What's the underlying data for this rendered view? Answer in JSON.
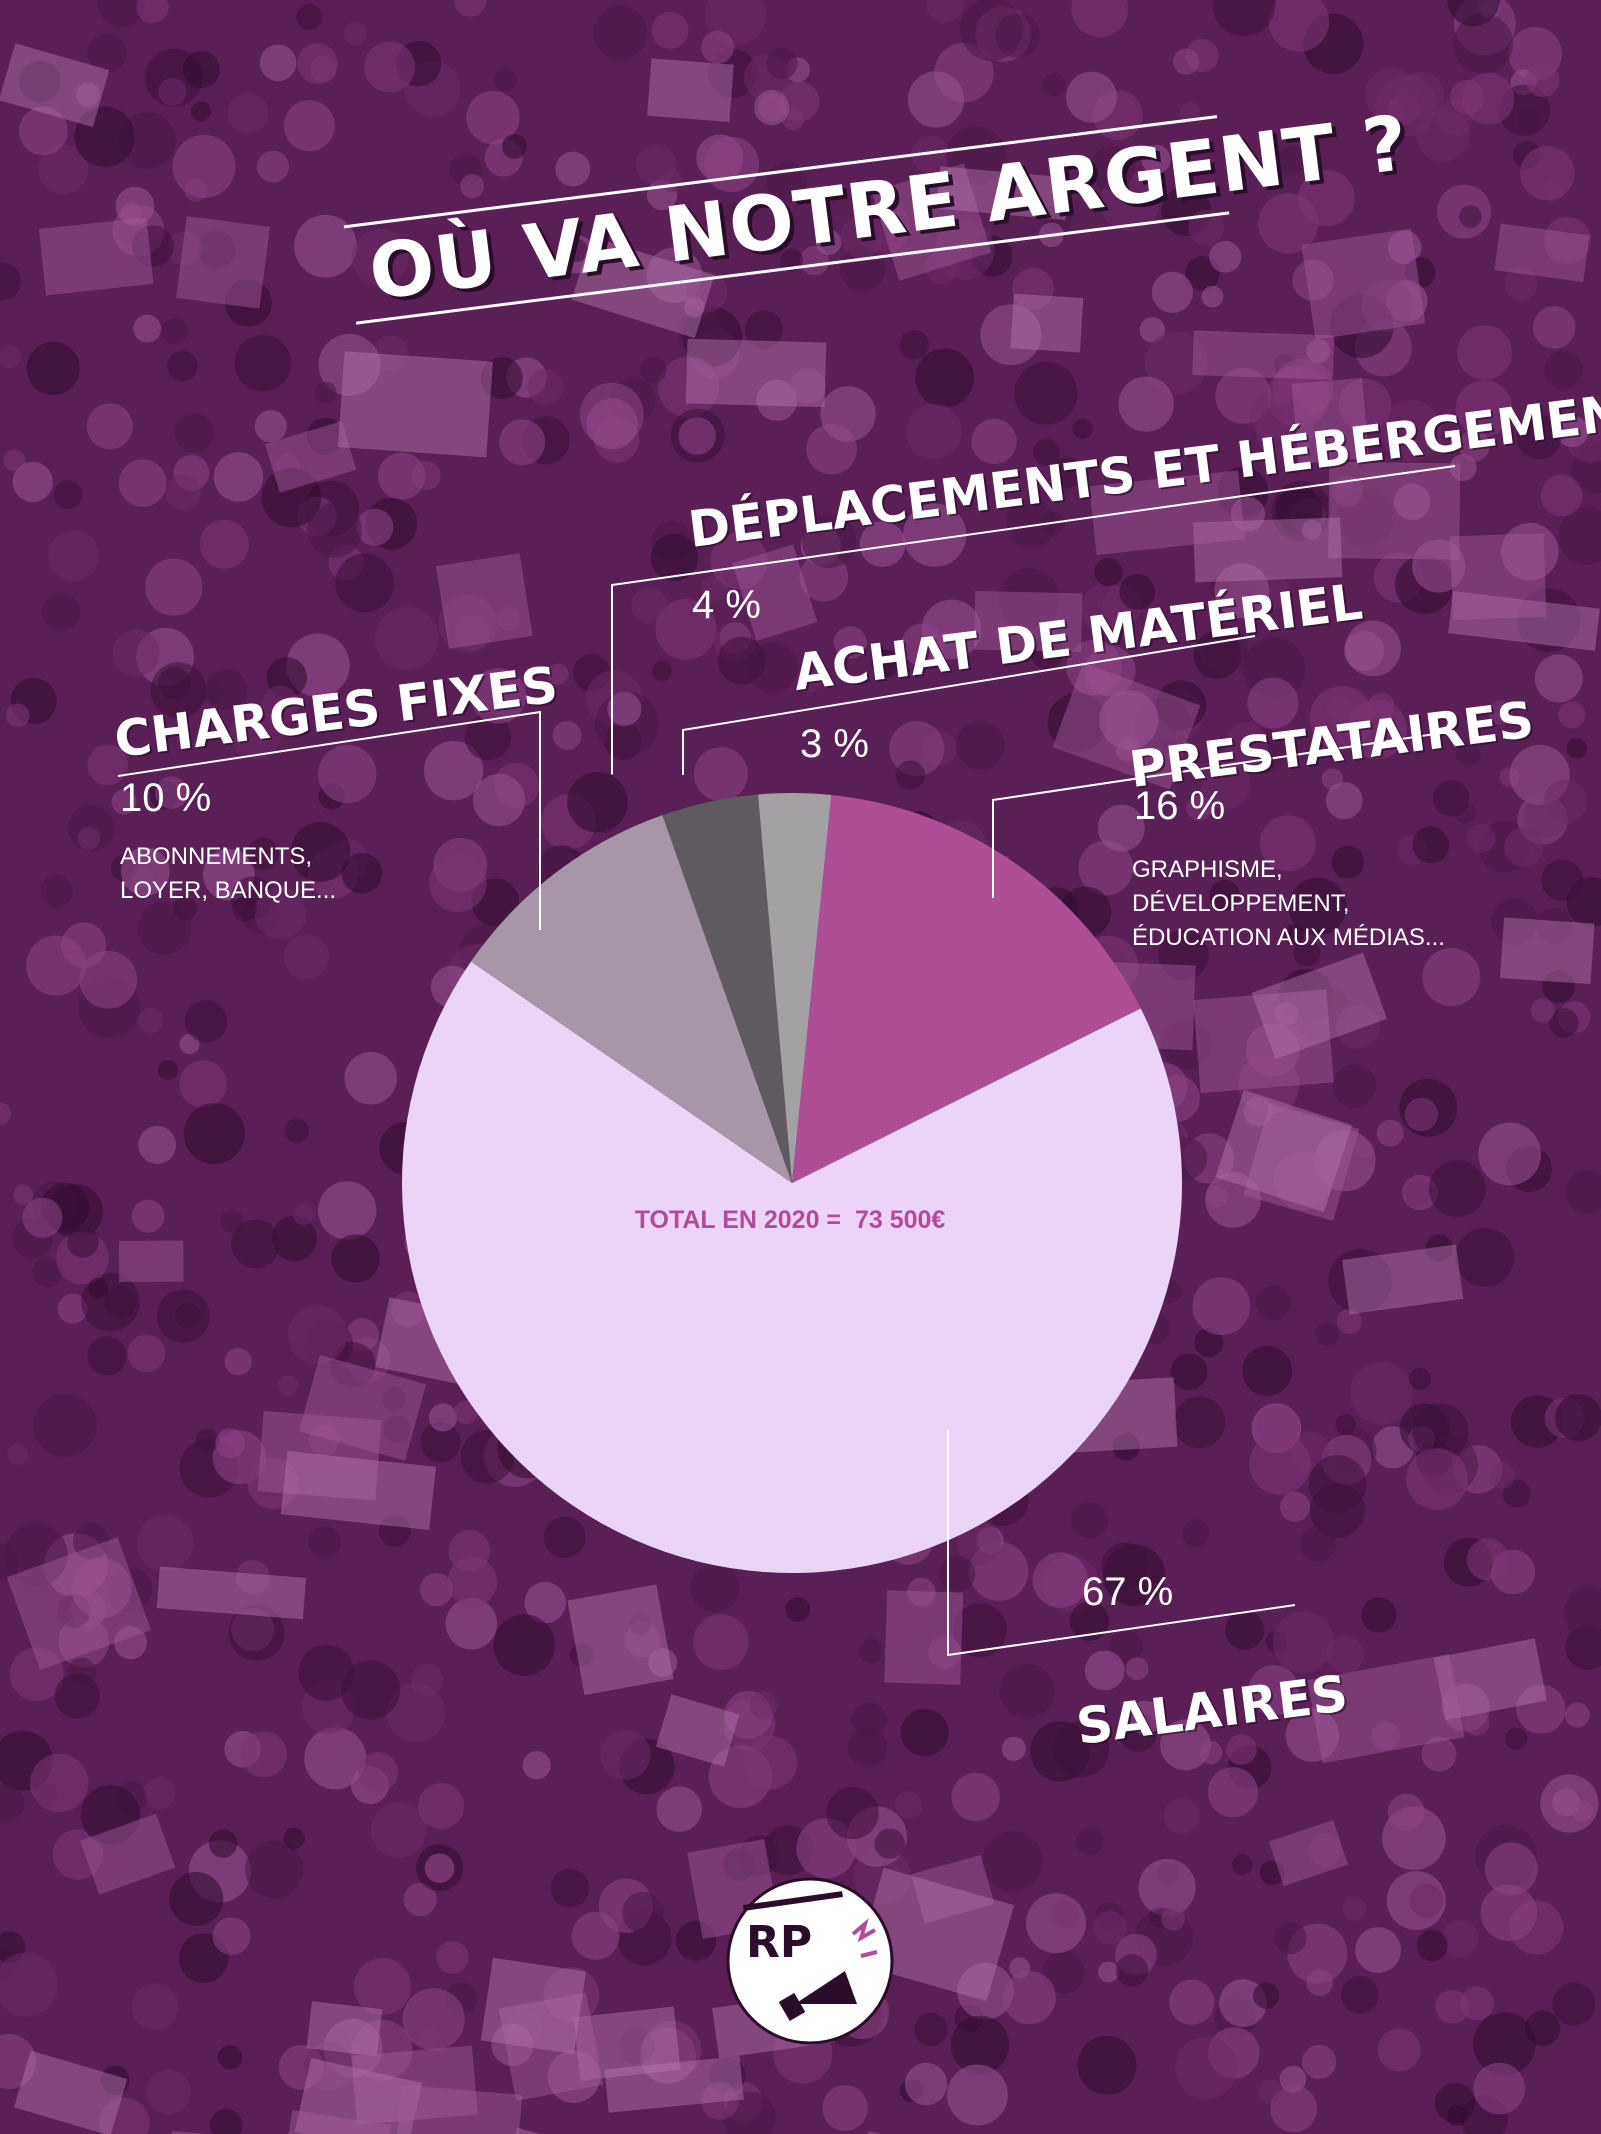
{
  "title": "OÙ VA NOTRE ARGENT ?",
  "total": {
    "label": "TOTAL EN 2020 =",
    "value": "73 500€"
  },
  "logo": {
    "text": "RP"
  },
  "categories": {
    "deplacements": {
      "name": "DÉPLACEMENTS ET HÉBERGEMENT",
      "pct": "4 %"
    },
    "achat": {
      "name": "ACHAT DE MATÉRIEL",
      "pct": "3 %"
    },
    "charges": {
      "name": "CHARGES FIXES",
      "pct": "10 %",
      "note": [
        "ABONNEMENTS,",
        "LOYER, BANQUE..."
      ]
    },
    "prestataires": {
      "name": "PRESTATAIRES",
      "pct": "16 %",
      "note": [
        "GRAPHISME,",
        "DÉVELOPPEMENT,",
        "ÉDUCATION AUX MÉDIAS..."
      ]
    },
    "salaires": {
      "name": "SALAIRES",
      "pct": "67 %"
    }
  },
  "colors": {
    "background": "#5a1f55",
    "salaires": "#ecd4f6",
    "prestataires": "#ae4e97",
    "charges": "#a796a8",
    "deplacements": "#5f5a5f",
    "achat": "#a3a1a3",
    "total_text": "#b04d98"
  },
  "chart_data": {
    "type": "pie",
    "title": "OÙ VA NOTRE ARGENT ?",
    "subtitle": "TOTAL EN 2020 = 73 500€",
    "slices": [
      {
        "label": "SALAIRES",
        "value": 67
      },
      {
        "label": "CHARGES FIXES",
        "value": 10
      },
      {
        "label": "DÉPLACEMENTS ET HÉBERGEMENT",
        "value": 4
      },
      {
        "label": "ACHAT DE MATÉRIEL",
        "value": 3
      },
      {
        "label": "PRESTATAIRES",
        "value": 16
      }
    ],
    "unit": "%",
    "legend": "none"
  }
}
